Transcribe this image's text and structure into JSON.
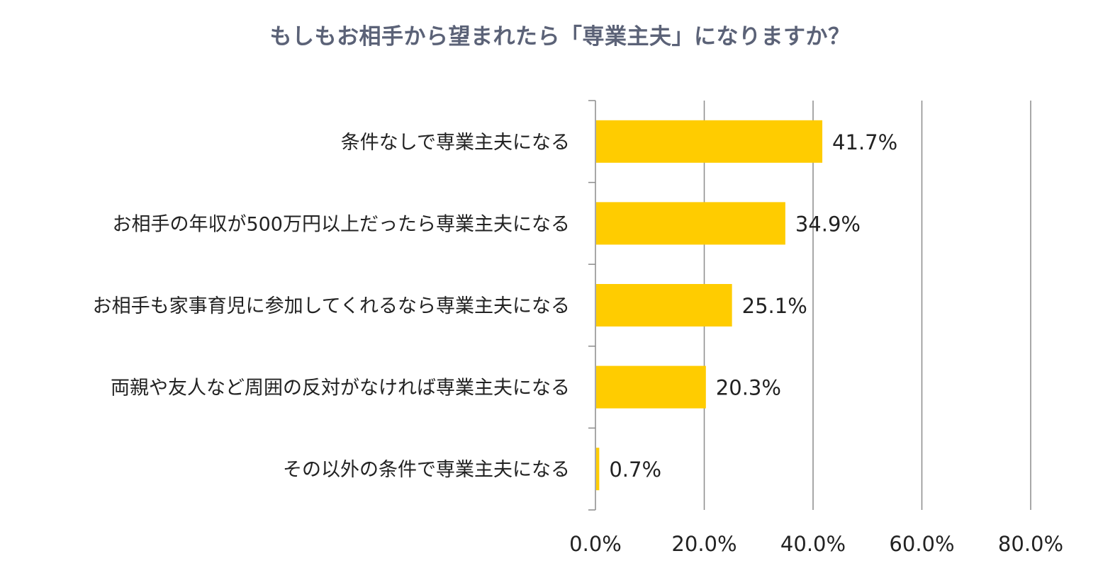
{
  "chart_data": {
    "type": "bar",
    "orientation": "horizontal",
    "title": "もしもお相手から望まれたら「専業主夫」になりますか？",
    "categories": [
      "条件なしで専業主夫になる",
      "お相手の年収が500万円以上だったら専業主夫になる",
      "お相手も家事育児に参加してくれるなら専業主夫になる",
      "両親や友人など周囲の反対がなければ専業主夫になる",
      "その以外の条件で専業主夫になる"
    ],
    "values": [
      41.7,
      34.9,
      25.1,
      20.3,
      0.7
    ],
    "data_labels": [
      "41.7%",
      "34.9%",
      "25.1%",
      "20.3%",
      "0.7%"
    ],
    "xlim": [
      0,
      80
    ],
    "xticks": [
      0,
      20,
      40,
      60,
      80
    ],
    "xtick_labels": [
      "0.0%",
      "20.0%",
      "40.0%",
      "60.0%",
      "80.0%"
    ],
    "grid": "vertical",
    "legend": "none",
    "colors": {
      "bar": "#ffcc00",
      "grid": "#8c8c8c",
      "title": "#5b6277",
      "text": "#222222"
    }
  }
}
